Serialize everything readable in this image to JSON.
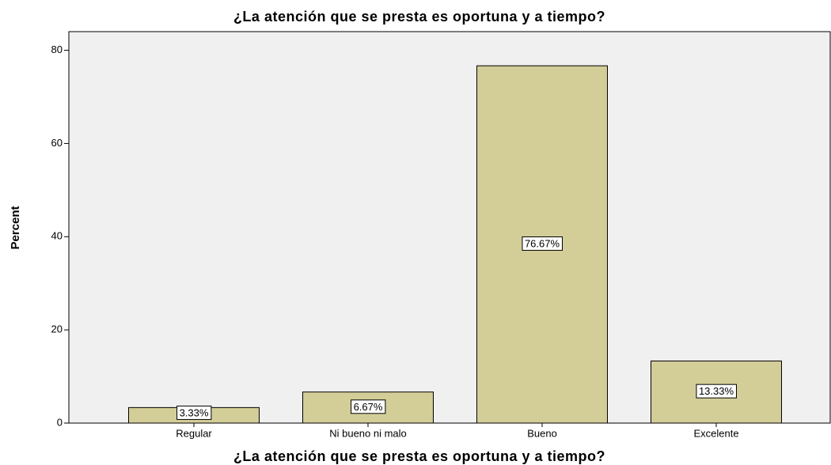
{
  "chart_data": {
    "type": "bar",
    "title": "¿La atención que se presta es oportuna y a tiempo?",
    "x_label": "¿La atención que se presta es oportuna y a tiempo?",
    "y_label": "Percent",
    "categories": [
      "Regular",
      "Ni bueno ni malo",
      "Bueno",
      "Excelente"
    ],
    "values": [
      3.33,
      6.67,
      76.67,
      13.33
    ],
    "value_labels": [
      "3.33%",
      "6.67%",
      "76.67%",
      "13.33%"
    ],
    "color": "#d3cd98",
    "ylim": [
      0,
      84
    ],
    "yticks": [
      0,
      20,
      40,
      60,
      80
    ],
    "grid": false
  }
}
